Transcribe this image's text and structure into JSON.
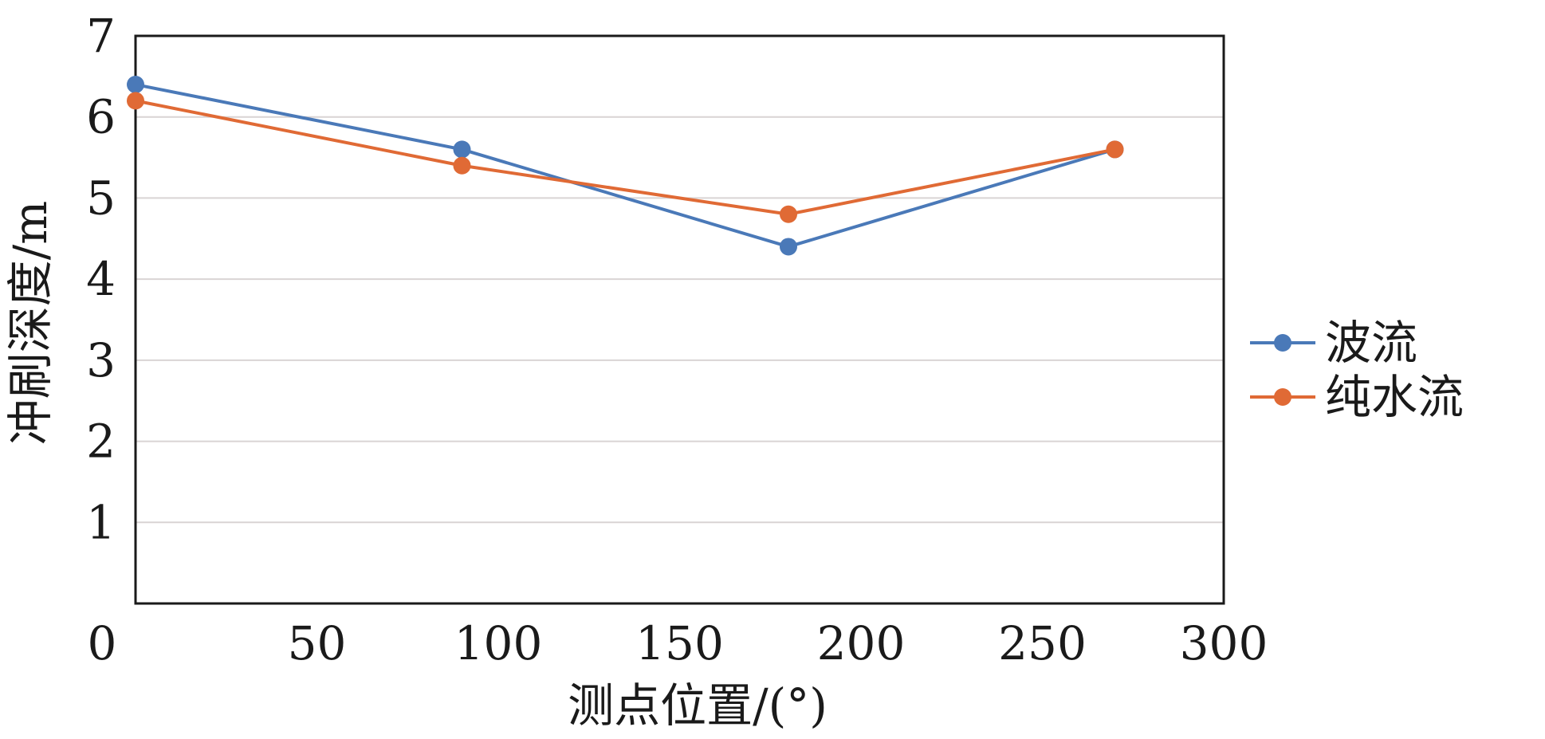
{
  "chart_data": {
    "type": "line",
    "xlabel": "测点位置/(°)",
    "ylabel": "冲刷深度/m",
    "xlim": [
      0,
      300
    ],
    "ylim": [
      0,
      7
    ],
    "x_ticks": [
      "0",
      "50",
      "100",
      "150",
      "200",
      "250",
      "300"
    ],
    "y_ticks": [
      "1",
      "2",
      "3",
      "4",
      "5",
      "6",
      "7"
    ],
    "grid": "horizontal",
    "legend_position": "right",
    "x": [
      0,
      90,
      180,
      270
    ],
    "series": [
      {
        "name": "波流",
        "color": "#4a79b8",
        "values": [
          6.4,
          5.6,
          4.4,
          5.6
        ]
      },
      {
        "name": "纯水流",
        "color": "#e06a35",
        "values": [
          6.2,
          5.4,
          4.8,
          5.6
        ]
      }
    ]
  }
}
